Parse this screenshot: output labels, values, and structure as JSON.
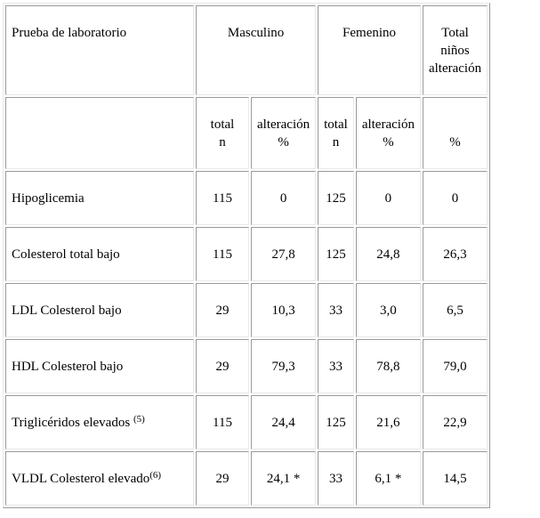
{
  "header": {
    "test": "Prueba de laboratorio",
    "male": "Masculino",
    "female": "Femenino",
    "total_line1": "Total",
    "total_line2": "niños",
    "total_line3": "alteración"
  },
  "subheader": {
    "male_n_line1": "total",
    "male_n_line2": "n",
    "male_pct_line1": "alteración",
    "male_pct_line2": "%",
    "female_n_line1": "total",
    "female_n_line2": "n",
    "female_pct_line1": "alteración",
    "female_pct_line2": "%",
    "total_pct": "%"
  },
  "rows": [
    {
      "test": "Hipoglicemia",
      "sup": "",
      "male_n": "115",
      "male_pct": "0",
      "female_n": "125",
      "female_pct": "0",
      "total_pct": "0"
    },
    {
      "test": "Colesterol total bajo",
      "sup": "",
      "male_n": "115",
      "male_pct": "27,8",
      "female_n": "125",
      "female_pct": "24,8",
      "total_pct": "26,3"
    },
    {
      "test": "LDL Colesterol bajo",
      "sup": "",
      "male_n": "29",
      "male_pct": "10,3",
      "female_n": "33",
      "female_pct": "3,0",
      "total_pct": "6,5"
    },
    {
      "test": "HDL Colesterol bajo",
      "sup": "",
      "male_n": "29",
      "male_pct": "79,3",
      "female_n": "33",
      "female_pct": "78,8",
      "total_pct": "79,0"
    },
    {
      "test": "Triglicéridos elevados ",
      "sup": "(5)",
      "male_n": "115",
      "male_pct": "24,4",
      "female_n": "125",
      "female_pct": "21,6",
      "total_pct": "22,9"
    },
    {
      "test": "VLDL Colesterol elevado",
      "sup": "(6)",
      "male_n": "29",
      "male_pct": "24,1 *",
      "female_n": "33",
      "female_pct": "6,1 *",
      "total_pct": "14,5"
    }
  ]
}
